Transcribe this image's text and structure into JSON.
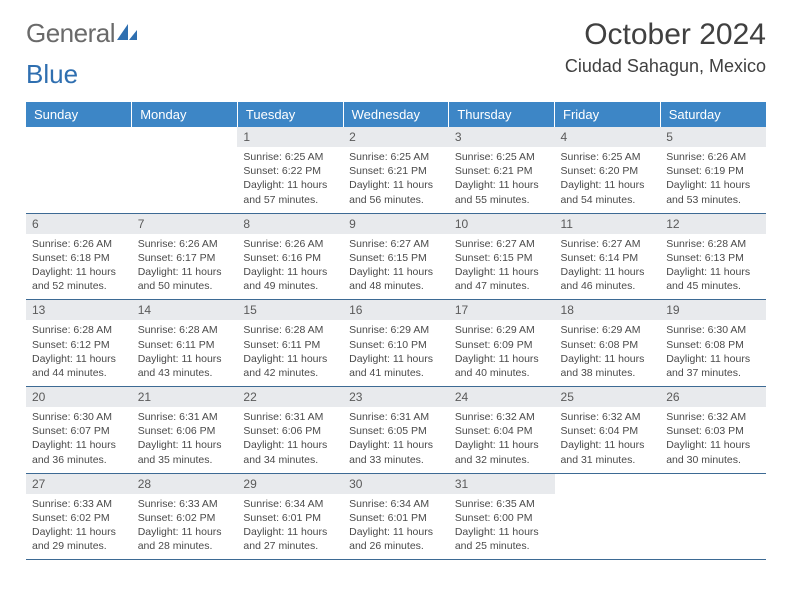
{
  "logo": {
    "textA": "General",
    "textB": "Blue"
  },
  "title": "October 2024",
  "location": "Ciudad Sahagun, Mexico",
  "colors": {
    "header_bg": "#3d86c6",
    "header_text": "#ffffff",
    "daynum_bg": "#e8eaed",
    "border": "#3d6a94",
    "body_text": "#4a4a4a",
    "logo_gray": "#6a6a6a",
    "logo_blue": "#2f6fb0"
  },
  "weekdays": [
    "Sunday",
    "Monday",
    "Tuesday",
    "Wednesday",
    "Thursday",
    "Friday",
    "Saturday"
  ],
  "weeks": [
    [
      null,
      null,
      {
        "n": "1",
        "sr": "6:25 AM",
        "ss": "6:22 PM",
        "dl": "11 hours and 57 minutes."
      },
      {
        "n": "2",
        "sr": "6:25 AM",
        "ss": "6:21 PM",
        "dl": "11 hours and 56 minutes."
      },
      {
        "n": "3",
        "sr": "6:25 AM",
        "ss": "6:21 PM",
        "dl": "11 hours and 55 minutes."
      },
      {
        "n": "4",
        "sr": "6:25 AM",
        "ss": "6:20 PM",
        "dl": "11 hours and 54 minutes."
      },
      {
        "n": "5",
        "sr": "6:26 AM",
        "ss": "6:19 PM",
        "dl": "11 hours and 53 minutes."
      }
    ],
    [
      {
        "n": "6",
        "sr": "6:26 AM",
        "ss": "6:18 PM",
        "dl": "11 hours and 52 minutes."
      },
      {
        "n": "7",
        "sr": "6:26 AM",
        "ss": "6:17 PM",
        "dl": "11 hours and 50 minutes."
      },
      {
        "n": "8",
        "sr": "6:26 AM",
        "ss": "6:16 PM",
        "dl": "11 hours and 49 minutes."
      },
      {
        "n": "9",
        "sr": "6:27 AM",
        "ss": "6:15 PM",
        "dl": "11 hours and 48 minutes."
      },
      {
        "n": "10",
        "sr": "6:27 AM",
        "ss": "6:15 PM",
        "dl": "11 hours and 47 minutes."
      },
      {
        "n": "11",
        "sr": "6:27 AM",
        "ss": "6:14 PM",
        "dl": "11 hours and 46 minutes."
      },
      {
        "n": "12",
        "sr": "6:28 AM",
        "ss": "6:13 PM",
        "dl": "11 hours and 45 minutes."
      }
    ],
    [
      {
        "n": "13",
        "sr": "6:28 AM",
        "ss": "6:12 PM",
        "dl": "11 hours and 44 minutes."
      },
      {
        "n": "14",
        "sr": "6:28 AM",
        "ss": "6:11 PM",
        "dl": "11 hours and 43 minutes."
      },
      {
        "n": "15",
        "sr": "6:28 AM",
        "ss": "6:11 PM",
        "dl": "11 hours and 42 minutes."
      },
      {
        "n": "16",
        "sr": "6:29 AM",
        "ss": "6:10 PM",
        "dl": "11 hours and 41 minutes."
      },
      {
        "n": "17",
        "sr": "6:29 AM",
        "ss": "6:09 PM",
        "dl": "11 hours and 40 minutes."
      },
      {
        "n": "18",
        "sr": "6:29 AM",
        "ss": "6:08 PM",
        "dl": "11 hours and 38 minutes."
      },
      {
        "n": "19",
        "sr": "6:30 AM",
        "ss": "6:08 PM",
        "dl": "11 hours and 37 minutes."
      }
    ],
    [
      {
        "n": "20",
        "sr": "6:30 AM",
        "ss": "6:07 PM",
        "dl": "11 hours and 36 minutes."
      },
      {
        "n": "21",
        "sr": "6:31 AM",
        "ss": "6:06 PM",
        "dl": "11 hours and 35 minutes."
      },
      {
        "n": "22",
        "sr": "6:31 AM",
        "ss": "6:06 PM",
        "dl": "11 hours and 34 minutes."
      },
      {
        "n": "23",
        "sr": "6:31 AM",
        "ss": "6:05 PM",
        "dl": "11 hours and 33 minutes."
      },
      {
        "n": "24",
        "sr": "6:32 AM",
        "ss": "6:04 PM",
        "dl": "11 hours and 32 minutes."
      },
      {
        "n": "25",
        "sr": "6:32 AM",
        "ss": "6:04 PM",
        "dl": "11 hours and 31 minutes."
      },
      {
        "n": "26",
        "sr": "6:32 AM",
        "ss": "6:03 PM",
        "dl": "11 hours and 30 minutes."
      }
    ],
    [
      {
        "n": "27",
        "sr": "6:33 AM",
        "ss": "6:02 PM",
        "dl": "11 hours and 29 minutes."
      },
      {
        "n": "28",
        "sr": "6:33 AM",
        "ss": "6:02 PM",
        "dl": "11 hours and 28 minutes."
      },
      {
        "n": "29",
        "sr": "6:34 AM",
        "ss": "6:01 PM",
        "dl": "11 hours and 27 minutes."
      },
      {
        "n": "30",
        "sr": "6:34 AM",
        "ss": "6:01 PM",
        "dl": "11 hours and 26 minutes."
      },
      {
        "n": "31",
        "sr": "6:35 AM",
        "ss": "6:00 PM",
        "dl": "11 hours and 25 minutes."
      },
      null,
      null
    ]
  ],
  "labels": {
    "sunrise": "Sunrise:",
    "sunset": "Sunset:",
    "daylight": "Daylight:"
  }
}
